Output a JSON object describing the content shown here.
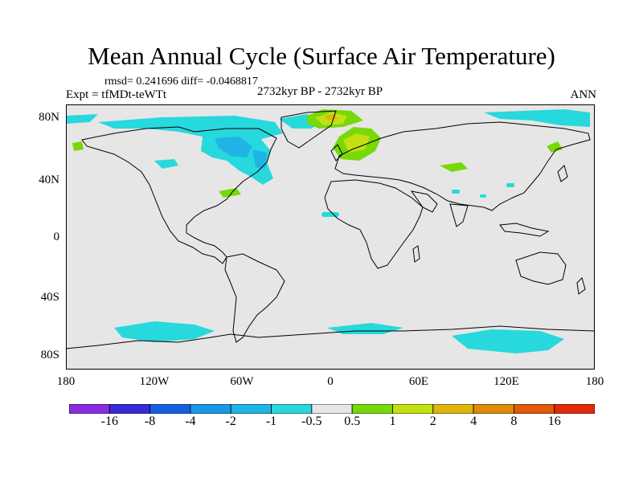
{
  "title": "Mean Annual Cycle (Surface Air Temperature)",
  "stats": "rmsd= 0.241696 diff= -0.0468817",
  "expt": "Expt = tfMDt-teWTt",
  "period": "2732kyr BP - 2732kyr BP",
  "season": "ANN",
  "lat_labels": [
    "80N",
    "40N",
    "0",
    "40S",
    "80S"
  ],
  "lon_labels": [
    "180",
    "120W",
    "60W",
    "0",
    "60E",
    "120E",
    "180"
  ],
  "colorbar": {
    "colors": [
      "#8a2be2",
      "#3a2ad8",
      "#1461e0",
      "#1e96e6",
      "#20b4e6",
      "#27d8dc",
      "#e6e6e6",
      "#77d80a",
      "#c2e012",
      "#e0b40c",
      "#e08a0a",
      "#e05a0a",
      "#e02a0a"
    ],
    "labels": [
      "-16",
      "-8",
      "-4",
      "-2",
      "-1",
      "-0.5",
      "0.5",
      "1",
      "2",
      "4",
      "8",
      "16"
    ]
  },
  "colors": {
    "ocean_neutral": "#e6e6e6",
    "cool_anomaly": "#27d8dc",
    "cooler_anomaly": "#20b4e6",
    "warm_anomaly": "#77d80a",
    "warmer_anomaly": "#c2e012",
    "warmest_anomaly": "#e0b40c"
  }
}
